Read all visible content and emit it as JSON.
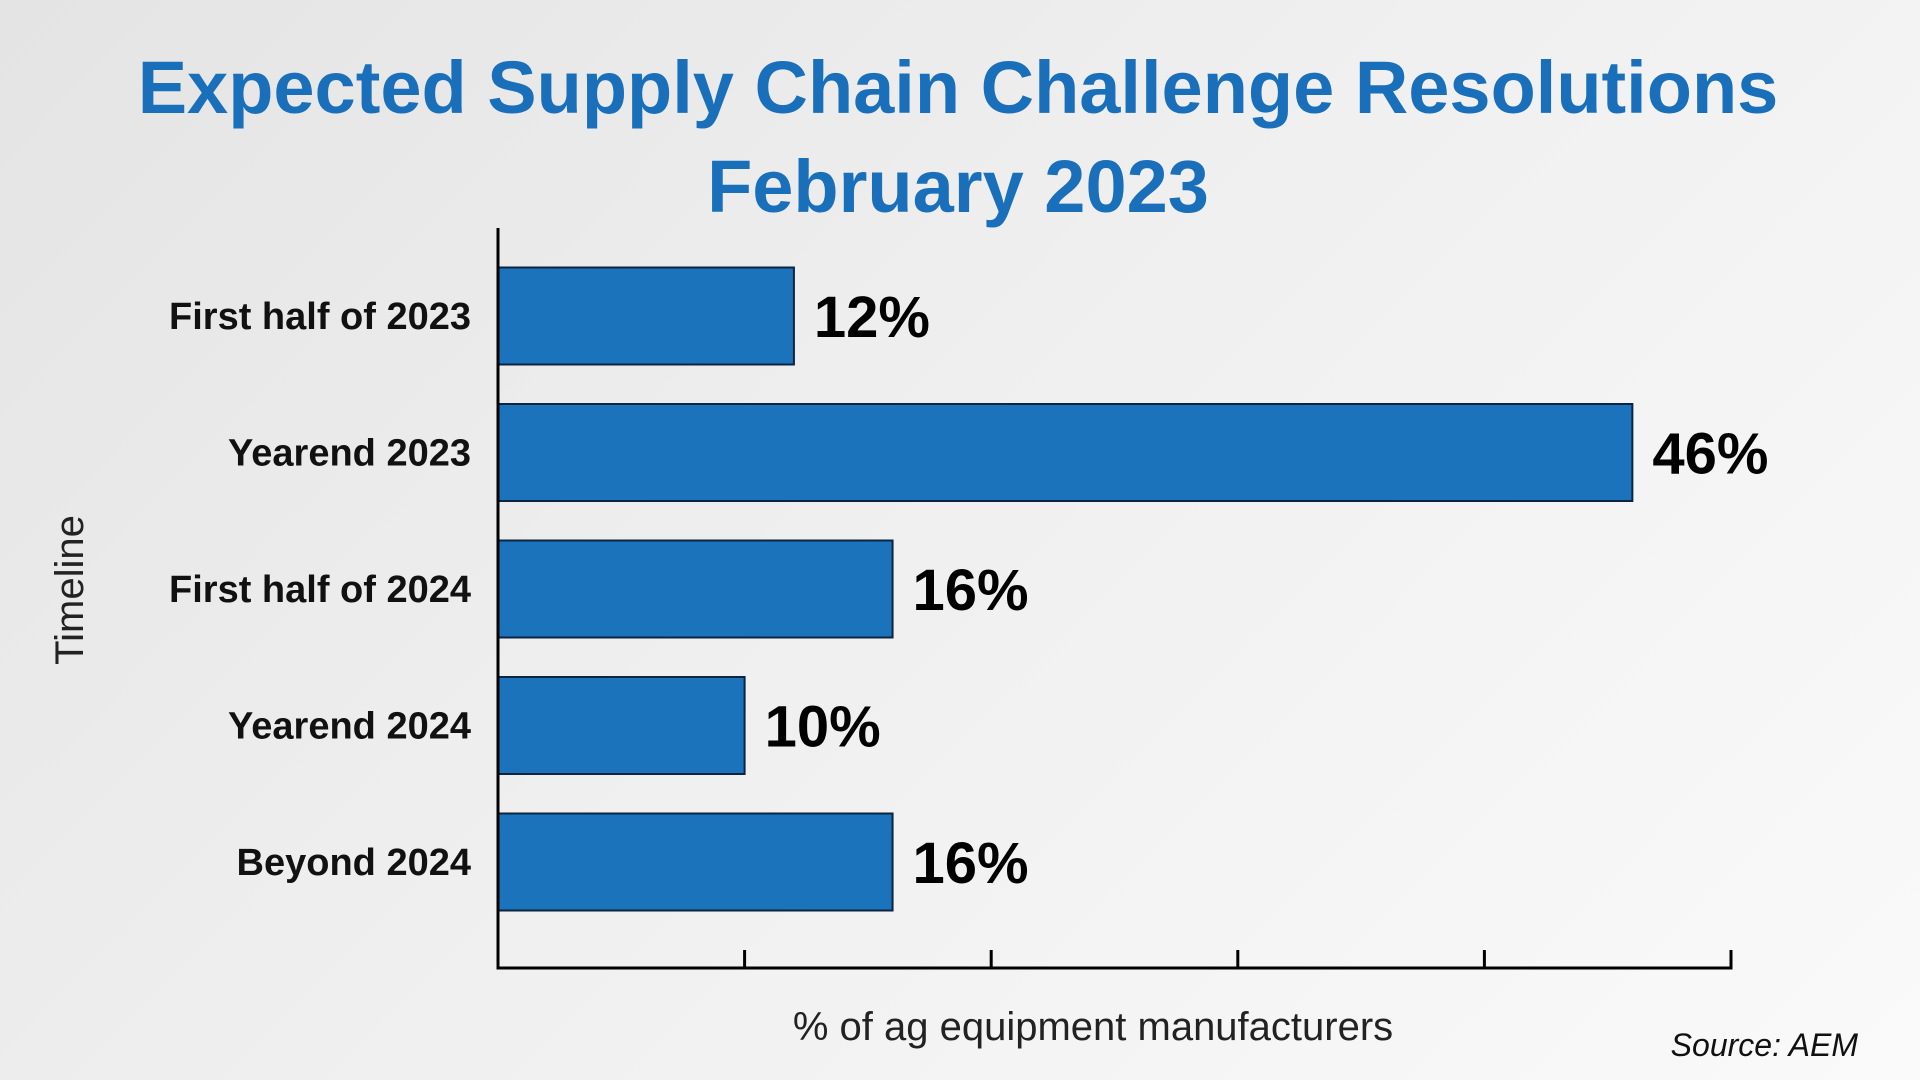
{
  "chart_data": {
    "type": "bar",
    "orientation": "horizontal",
    "title": "Expected Supply Chain Challenge Resolutions",
    "subtitle": "February 2023",
    "categories": [
      "First half of 2023",
      "Yearend 2023",
      "First half of 2024",
      "Yearend 2024",
      "Beyond 2024"
    ],
    "values": [
      12,
      46,
      16,
      10,
      16
    ],
    "value_labels": [
      "12%",
      "46%",
      "16%",
      "10%",
      "16%"
    ],
    "xlabel": "% of ag equipment manufacturers",
    "ylabel": "Timeline",
    "xlim": [
      0,
      50
    ],
    "x_tick_count": 5,
    "grid": false,
    "bar_color": "#1a73bb",
    "bar_edge_color": "#0d2440",
    "title_color": "#1a6fba",
    "source": "Source: AEM"
  }
}
